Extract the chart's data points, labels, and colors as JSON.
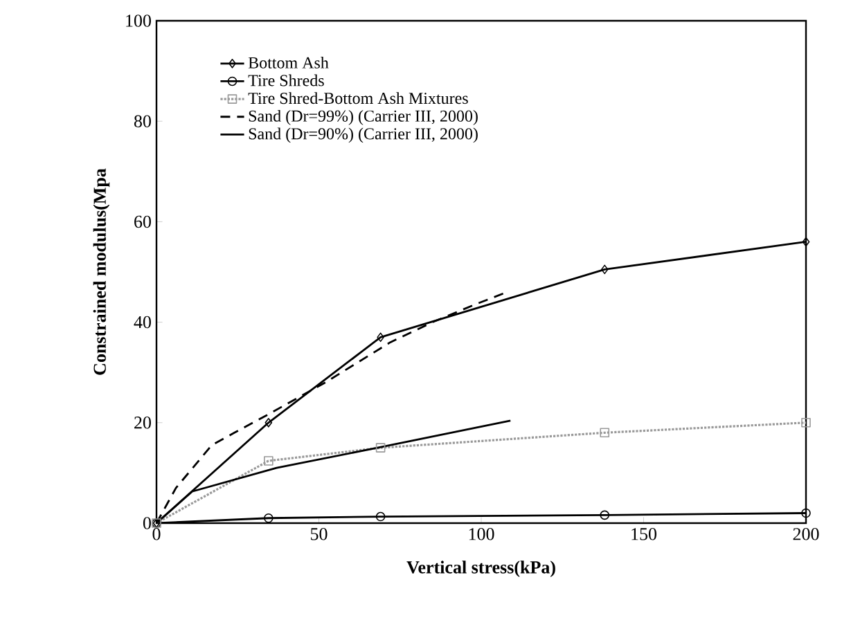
{
  "chart_data": {
    "type": "line",
    "xlabel": "Vertical stress(kPa)",
    "ylabel": "Constrained modulus(Mpa",
    "xlim": [
      0,
      200
    ],
    "ylim": [
      0,
      100
    ],
    "xticks": [
      0,
      50,
      100,
      150,
      200
    ],
    "yticks": [
      0,
      20,
      40,
      60,
      80,
      100
    ],
    "grid": false,
    "legend": "top left",
    "series": [
      {
        "name": "Bottom Ash",
        "color": "#000000",
        "marker": "diamond",
        "line_style": "solid",
        "x": [
          0,
          34.5,
          69,
          138,
          200
        ],
        "values": [
          0,
          20,
          37,
          50.5,
          56
        ]
      },
      {
        "name": "Tire Shreds",
        "color": "#000000",
        "marker": "circle",
        "line_style": "solid",
        "x": [
          0,
          34.5,
          69,
          138,
          200
        ],
        "values": [
          0,
          1,
          1.3,
          1.6,
          2
        ]
      },
      {
        "name": "Tire Shred-Bottom Ash Mixtures",
        "color": "#999999",
        "marker": "square",
        "line_style": "dotted",
        "x": [
          0,
          34.5,
          69,
          138,
          200
        ],
        "values": [
          0,
          12.4,
          15,
          18,
          20
        ]
      },
      {
        "name": "Sand (Dr=99%) (Carrier III, 2000)",
        "color": "#000000",
        "marker": "none",
        "line_style": "dashed",
        "x": [
          0,
          6,
          17,
          24,
          34,
          52,
          72,
          85,
          98,
          108
        ],
        "values": [
          0,
          7,
          15.5,
          18,
          21.5,
          28,
          36,
          40,
          43.5,
          46
        ]
      },
      {
        "name": "Sand (Dr=90%) (Carrier III, 2000)",
        "color": "#000000",
        "marker": "none",
        "line_style": "solid",
        "x": [
          0,
          11,
          37,
          68,
          109
        ],
        "values": [
          0,
          6.3,
          11,
          15,
          20.4
        ]
      }
    ]
  }
}
